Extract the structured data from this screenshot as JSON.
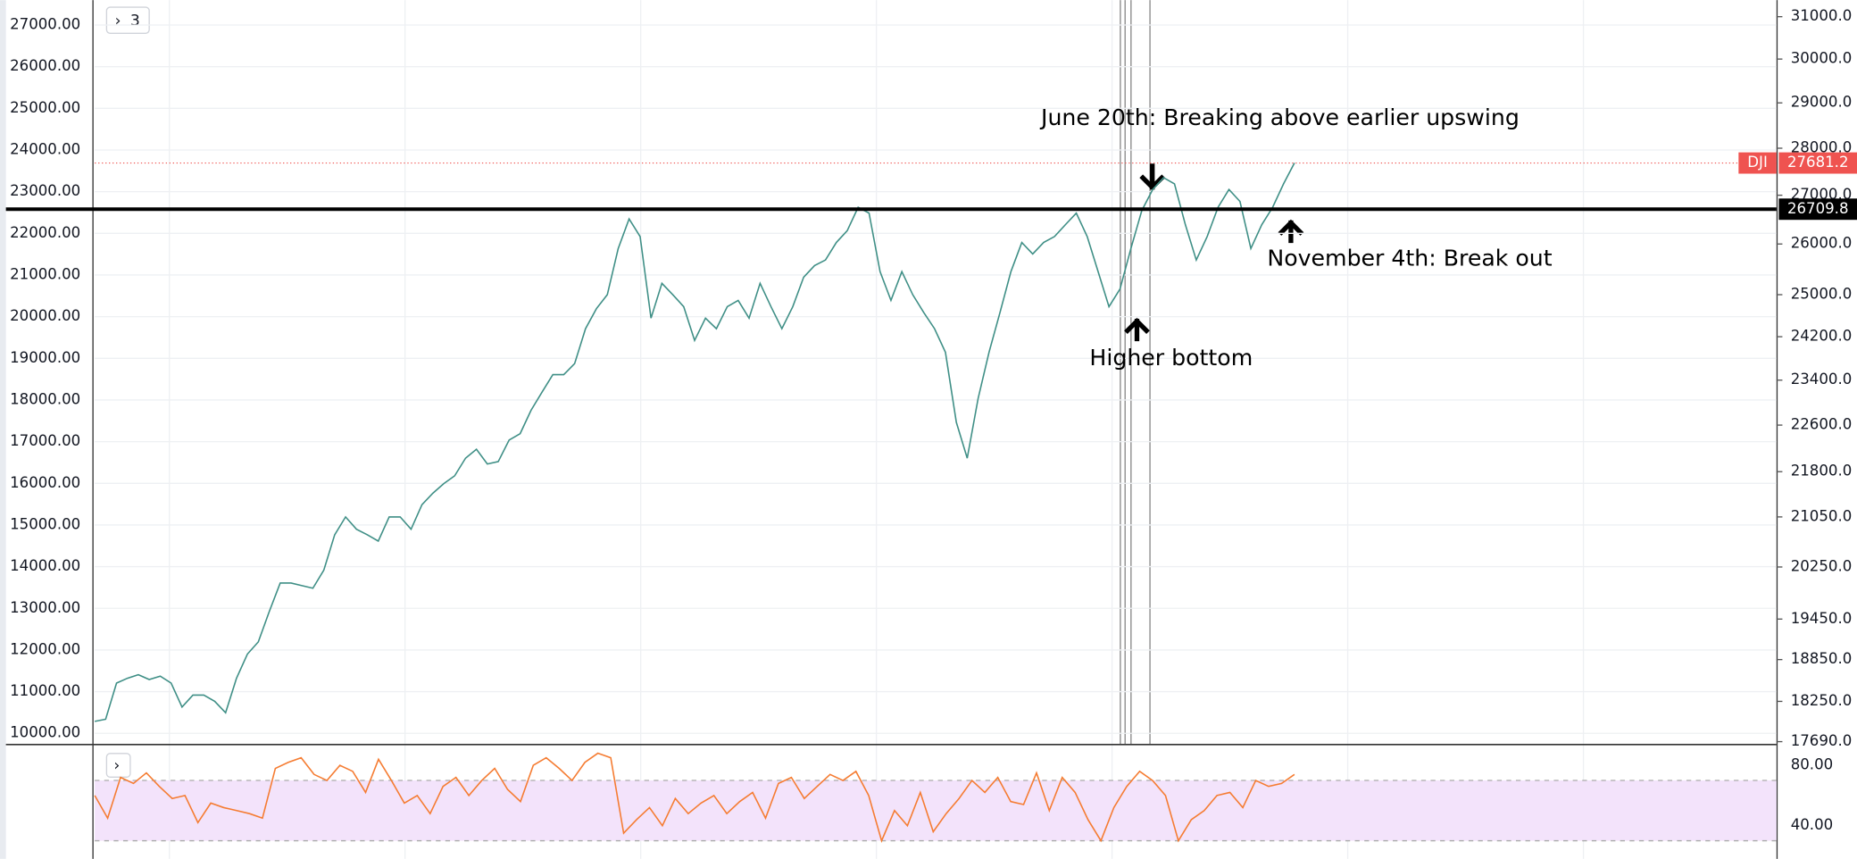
{
  "chart_data": [
    {
      "type": "line",
      "series": [
        {
          "name": "DJI",
          "color": "#3f8f86",
          "axis": "y2",
          "values": [
            17970,
            18000,
            18510,
            18580,
            18630,
            18560,
            18610,
            18510,
            18170,
            18340,
            18340,
            18250,
            18090,
            18580,
            18930,
            19110,
            19560,
            20000,
            20000,
            19960,
            19920,
            20200,
            20760,
            21050,
            20850,
            20760,
            20660,
            21050,
            21050,
            20850,
            21250,
            21440,
            21600,
            21730,
            22030,
            22180,
            21930,
            21970,
            22340,
            22450,
            22860,
            23180,
            23500,
            23500,
            23700,
            24350,
            24730,
            25000,
            25910,
            26510,
            26150,
            24550,
            25220,
            25000,
            24770,
            24130,
            24550,
            24350,
            24770,
            24890,
            24550,
            25220,
            24770,
            24350,
            24770,
            25340,
            25570,
            25680,
            26030,
            26270,
            26750,
            26630,
            25450,
            24890,
            25450,
            25000,
            24660,
            24350,
            23910,
            22650,
            22030,
            23070,
            23910,
            24660,
            25450,
            26030,
            25800,
            26030,
            26150,
            26390,
            26630,
            26150,
            25450,
            24770,
            25110,
            25910,
            26680,
            27120,
            27370,
            27240,
            26390,
            25680,
            26150,
            26750,
            27120,
            26870,
            25910,
            26390,
            26750,
            27240,
            27681.2
          ]
        }
      ],
      "ylim": [
        9744,
        27597
      ],
      "yticks": [
        {
          "value": 10000,
          "label": "10000.00"
        },
        {
          "value": 11000,
          "label": "11000.00"
        },
        {
          "value": 12000,
          "label": "12000.00"
        },
        {
          "value": 13000,
          "label": "13000.00"
        },
        {
          "value": 14000,
          "label": "14000.00"
        },
        {
          "value": 15000,
          "label": "15000.00"
        },
        {
          "value": 16000,
          "label": "16000.00"
        },
        {
          "value": 17000,
          "label": "17000.00"
        },
        {
          "value": 18000,
          "label": "18000.00"
        },
        {
          "value": 19000,
          "label": "19000.00"
        },
        {
          "value": 20000,
          "label": "20000.00"
        },
        {
          "value": 21000,
          "label": "21000.00"
        },
        {
          "value": 22000,
          "label": "22000.00"
        },
        {
          "value": 23000,
          "label": "23000.00"
        },
        {
          "value": 24000,
          "label": "24000.00"
        },
        {
          "value": 25000,
          "label": "25000.00"
        },
        {
          "value": 26000,
          "label": "26000.00"
        },
        {
          "value": 27000,
          "label": "27000.00"
        }
      ],
      "y2lim": [
        17658,
        31400
      ],
      "y2log": true,
      "y2ticks": [
        {
          "value": 17690,
          "label": "17690.0"
        },
        {
          "value": 18250,
          "label": "18250.0"
        },
        {
          "value": 18850,
          "label": "18850.0"
        },
        {
          "value": 19450,
          "label": "19450.0"
        },
        {
          "value": 20250,
          "label": "20250.0"
        },
        {
          "value": 21050,
          "label": "21050.0"
        },
        {
          "value": 21800,
          "label": "21800.0"
        },
        {
          "value": 22600,
          "label": "22600.0"
        },
        {
          "value": 23400,
          "label": "23400.0"
        },
        {
          "value": 24200,
          "label": "24200.0"
        },
        {
          "value": 25000,
          "label": "25000.0"
        },
        {
          "value": 26000,
          "label": "26000.0"
        },
        {
          "value": 27000,
          "label": "27000.0"
        },
        {
          "value": 28000,
          "label": "28000.0"
        },
        {
          "value": 29000,
          "label": "29000.0"
        },
        {
          "value": 30000,
          "label": "30000.0"
        },
        {
          "value": 31000,
          "label": "31000.0"
        }
      ],
      "grid": true,
      "last_value": 27681.2,
      "last_value_color": "#ef5350",
      "level": 26709.8,
      "annotations": [
        "June 20th: Breaking above earlier upswing",
        "November 4th: Break out",
        "Higher bottom"
      ],
      "indicator_count": "3"
    },
    {
      "type": "line",
      "series": [
        {
          "color": "#f57c32",
          "values": [
            60,
            45,
            72,
            68,
            75,
            66,
            58,
            60,
            42,
            55,
            52,
            50,
            48,
            45,
            78,
            82,
            85,
            74,
            70,
            80,
            76,
            62,
            84,
            70,
            55,
            60,
            48,
            66,
            72,
            60,
            70,
            78,
            64,
            56,
            80,
            85,
            78,
            70,
            82,
            88,
            85,
            35,
            44,
            52,
            40,
            58,
            48,
            55,
            60,
            48,
            56,
            62,
            45,
            68,
            72,
            58,
            66,
            74,
            70,
            76,
            60,
            30,
            50,
            40,
            62,
            36,
            48,
            58,
            70,
            62,
            72,
            56,
            54,
            75,
            50,
            72,
            62,
            44,
            30,
            52,
            66,
            76,
            70,
            60,
            30,
            44,
            50,
            60,
            62,
            52,
            70,
            66,
            68,
            74
          ]
        }
      ],
      "ylim": [
        18,
        91
      ],
      "yticks": [
        {
          "value": 80,
          "label": "80.00"
        },
        {
          "value": 40,
          "label": "40.00"
        }
      ],
      "band": [
        30,
        70
      ],
      "band_color": "#f3e3fb"
    }
  ]
}
